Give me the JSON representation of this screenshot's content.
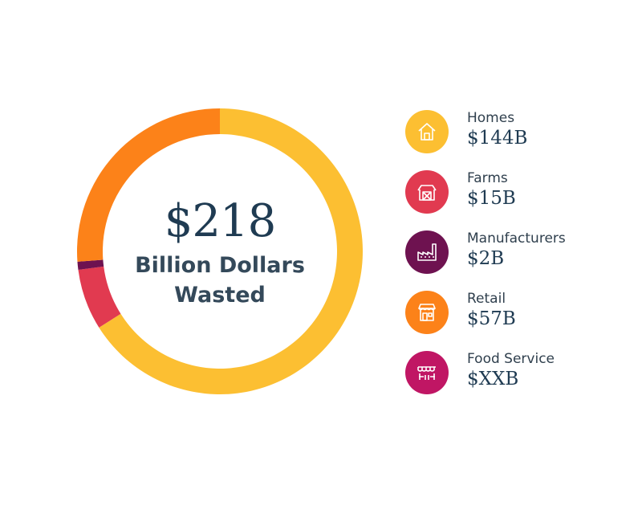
{
  "chart_data": {
    "type": "pie",
    "variant": "donut",
    "center": {
      "amount": "$218",
      "caption": "Billion Dollars Wasted"
    },
    "categories": [
      "Homes",
      "Farms",
      "Manufacturers",
      "Retail",
      "Food Service"
    ],
    "value_labels": [
      "$144B",
      "$15B",
      "$2B",
      "$57B",
      "$XXB"
    ],
    "values": [
      144,
      15,
      2,
      57,
      0
    ],
    "units": "billion dollars",
    "start_at_top": true
  },
  "colors": {
    "Homes": "#fcbf32",
    "Farms": "#e13a50",
    "Manufacturers": "#6e1250",
    "Retail": "#fc8219",
    "Food Service": "#c01664"
  },
  "legend": {
    "items": [
      {
        "label": "Homes",
        "value": "$144B",
        "icon": "house-icon",
        "color": "#fcbf32"
      },
      {
        "label": "Farms",
        "value": "$15B",
        "icon": "barn-icon",
        "color": "#e13a50"
      },
      {
        "label": "Manufacturers",
        "value": "$2B",
        "icon": "factory-icon",
        "color": "#6e1250"
      },
      {
        "label": "Retail",
        "value": "$57B",
        "icon": "storefront-icon",
        "color": "#fc8219"
      },
      {
        "label": "Food Service",
        "value": "$XXB",
        "icon": "food-stall-icon",
        "color": "#c01664"
      }
    ]
  }
}
